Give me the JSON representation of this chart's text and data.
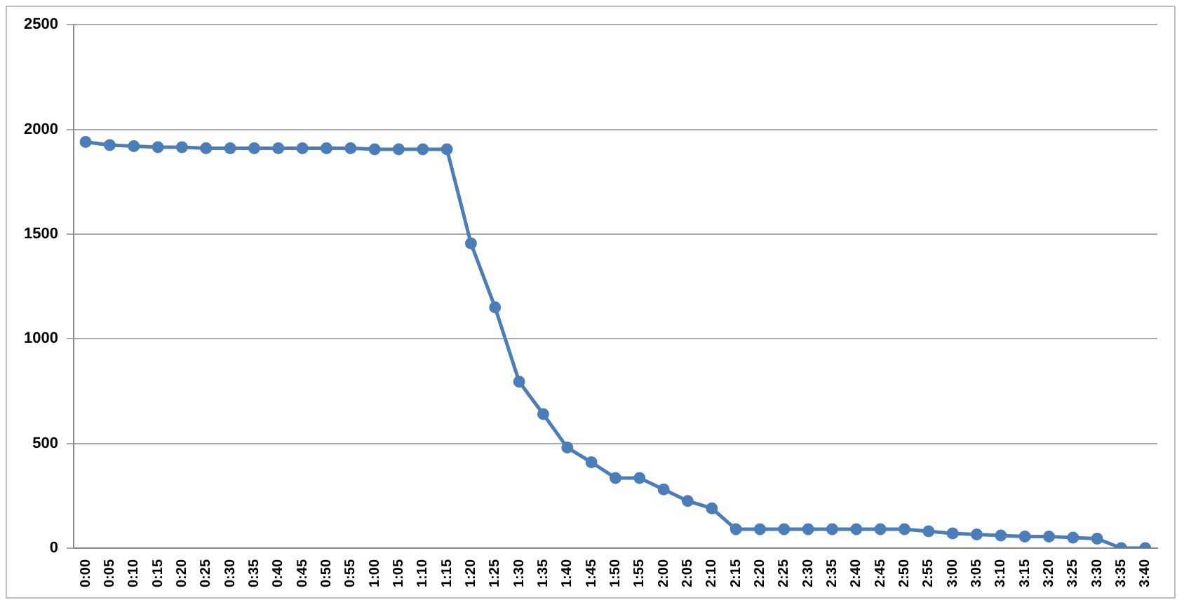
{
  "chart_data": {
    "type": "line",
    "categories": [
      "0:00",
      "0:05",
      "0:10",
      "0:15",
      "0:20",
      "0:25",
      "0:30",
      "0:35",
      "0:40",
      "0:45",
      "0:50",
      "0:55",
      "1:00",
      "1:05",
      "1:10",
      "1:15",
      "1:20",
      "1:25",
      "1:30",
      "1:35",
      "1:40",
      "1:45",
      "1:50",
      "1:55",
      "2:00",
      "2:05",
      "2:10",
      "2:15",
      "2:20",
      "2:25",
      "2:30",
      "2:35",
      "2:40",
      "2:45",
      "2:50",
      "2:55",
      "3:00",
      "3:05",
      "3:10",
      "3:15",
      "3:20",
      "3:25",
      "3:30",
      "3:35",
      "3:40"
    ],
    "series": [
      {
        "color": "#4a7ebb",
        "values": [
          1940,
          1925,
          1920,
          1915,
          1915,
          1910,
          1910,
          1910,
          1910,
          1910,
          1910,
          1910,
          1905,
          1905,
          1905,
          1905,
          1455,
          1150,
          795,
          640,
          480,
          410,
          335,
          335,
          280,
          225,
          190,
          90,
          90,
          90,
          90,
          90,
          90,
          90,
          90,
          80,
          70,
          65,
          60,
          55,
          55,
          50,
          45,
          0,
          0
        ]
      }
    ],
    "ylim": [
      0,
      2500
    ],
    "yticks": [
      0,
      500,
      1000,
      1500,
      2000,
      2500
    ],
    "grid": "y",
    "legend": false,
    "marker": "circle",
    "line_style": "solid"
  }
}
